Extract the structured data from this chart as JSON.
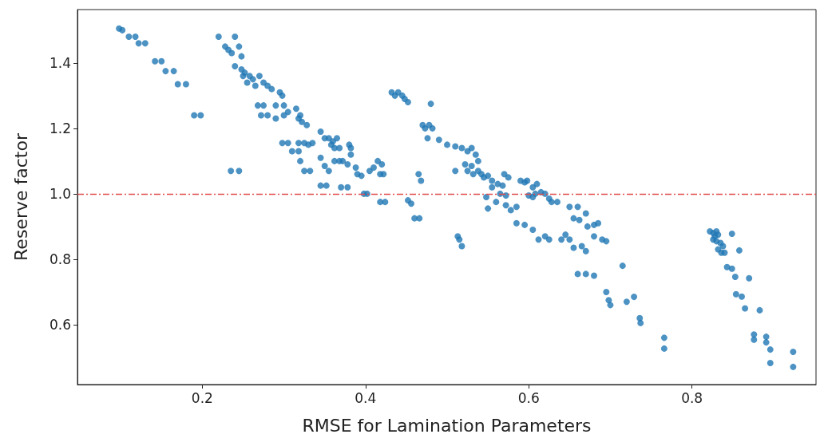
{
  "chart_data": {
    "type": "scatter",
    "xlabel": "RMSE for Lamination Parameters",
    "ylabel": "Reserve factor",
    "xlim": [
      0.047,
      0.952
    ],
    "ylim": [
      0.417,
      1.563
    ],
    "xticks": [
      0.2,
      0.4,
      0.6,
      0.8
    ],
    "yticks": [
      0.6,
      0.8,
      {
        "value": 1,
        "label": "1.0"
      },
      1.2,
      1.4
    ],
    "grid": false,
    "marker": "circle",
    "ref_lines": [
      {
        "axis": "y",
        "value": 1.0,
        "color": "#e04b4b",
        "line_style": "dashed"
      }
    ],
    "series": [
      {
        "color": "#1f77b4",
        "x": [
          0.098,
          0.102,
          0.11,
          0.118,
          0.122,
          0.13,
          0.142,
          0.15,
          0.155,
          0.165,
          0.17,
          0.18,
          0.19,
          0.198,
          0.235,
          0.245,
          0.22,
          0.228,
          0.232,
          0.236,
          0.24,
          0.245,
          0.248,
          0.24,
          0.248,
          0.252,
          0.258,
          0.25,
          0.262,
          0.255,
          0.265,
          0.27,
          0.275,
          0.28,
          0.285,
          0.268,
          0.275,
          0.272,
          0.28,
          0.29,
          0.295,
          0.298,
          0.3,
          0.29,
          0.3,
          0.305,
          0.315,
          0.32,
          0.322,
          0.318,
          0.328,
          0.298,
          0.305,
          0.31,
          0.318,
          0.318,
          0.325,
          0.33,
          0.335,
          0.32,
          0.325,
          0.332,
          0.345,
          0.35,
          0.355,
          0.36,
          0.365,
          0.358,
          0.362,
          0.368,
          0.345,
          0.35,
          0.355,
          0.345,
          0.352,
          0.362,
          0.368,
          0.372,
          0.378,
          0.38,
          0.382,
          0.37,
          0.378,
          0.382,
          0.388,
          0.39,
          0.395,
          0.398,
          0.402,
          0.405,
          0.41,
          0.415,
          0.42,
          0.418,
          0.422,
          0.418,
          0.424,
          0.432,
          0.436,
          0.44,
          0.445,
          0.448,
          0.452,
          0.48,
          0.465,
          0.468,
          0.452,
          0.456,
          0.46,
          0.466,
          0.47,
          0.473,
          0.478,
          0.482,
          0.476,
          0.49,
          0.5,
          0.51,
          0.518,
          0.525,
          0.53,
          0.535,
          0.538,
          0.51,
          0.522,
          0.525,
          0.53,
          0.532,
          0.538,
          0.542,
          0.545,
          0.55,
          0.555,
          0.562,
          0.568,
          0.57,
          0.575,
          0.555,
          0.565,
          0.572,
          0.513,
          0.515,
          0.518,
          0.548,
          0.55,
          0.56,
          0.572,
          0.578,
          0.585,
          0.59,
          0.595,
          0.598,
          0.605,
          0.61,
          0.6,
          0.605,
          0.608,
          0.585,
          0.595,
          0.615,
          0.62,
          0.625,
          0.628,
          0.635,
          0.62,
          0.625,
          0.64,
          0.645,
          0.605,
          0.612,
          0.65,
          0.66,
          0.655,
          0.662,
          0.67,
          0.672,
          0.68,
          0.685,
          0.65,
          0.655,
          0.665,
          0.67,
          0.68,
          0.69,
          0.695,
          0.66,
          0.67,
          0.68,
          0.695,
          0.698,
          0.7,
          0.715,
          0.72,
          0.729,
          0.736,
          0.737,
          0.766,
          0.766,
          0.822,
          0.826,
          0.83,
          0.828,
          0.832,
          0.826,
          0.83,
          0.835,
          0.838,
          0.832,
          0.836,
          0.84,
          0.849,
          0.858,
          0.843,
          0.849,
          0.853,
          0.87,
          0.854,
          0.861,
          0.865,
          0.883,
          0.876,
          0.876,
          0.891,
          0.891,
          0.896,
          0.896,
          0.924,
          0.924
        ],
        "values": [
          1.505,
          1.5,
          1.48,
          1.48,
          1.46,
          1.46,
          1.405,
          1.405,
          1.375,
          1.375,
          1.335,
          1.335,
          1.24,
          1.24,
          1.07,
          1.07,
          1.48,
          1.45,
          1.44,
          1.43,
          1.48,
          1.45,
          1.42,
          1.39,
          1.38,
          1.37,
          1.36,
          1.36,
          1.35,
          1.34,
          1.33,
          1.36,
          1.34,
          1.33,
          1.32,
          1.27,
          1.27,
          1.24,
          1.24,
          1.27,
          1.31,
          1.3,
          1.27,
          1.23,
          1.24,
          1.25,
          1.26,
          1.24,
          1.22,
          1.23,
          1.21,
          1.155,
          1.155,
          1.13,
          1.13,
          1.155,
          1.155,
          1.15,
          1.155,
          1.1,
          1.07,
          1.07,
          1.19,
          1.17,
          1.17,
          1.16,
          1.17,
          1.15,
          1.14,
          1.14,
          1.11,
          1.085,
          1.07,
          1.025,
          1.025,
          1.1,
          1.1,
          1.1,
          1.09,
          1.15,
          1.14,
          1.02,
          1.02,
          1.12,
          1.08,
          1.06,
          1.055,
          1.0,
          1.0,
          1.07,
          1.08,
          1.1,
          1.09,
          1.06,
          1.06,
          0.975,
          0.975,
          1.31,
          1.3,
          1.31,
          1.3,
          1.29,
          1.28,
          1.275,
          1.06,
          1.04,
          0.98,
          0.97,
          0.925,
          0.925,
          1.21,
          1.2,
          1.21,
          1.2,
          1.17,
          1.165,
          1.15,
          1.145,
          1.14,
          1.13,
          1.14,
          1.12,
          1.1,
          1.07,
          1.09,
          1.07,
          1.085,
          1.06,
          1.07,
          1.06,
          1.05,
          1.055,
          1.04,
          1.03,
          1.025,
          1.06,
          1.05,
          1.02,
          1.0,
          0.995,
          0.87,
          0.86,
          0.84,
          0.99,
          0.955,
          0.975,
          0.965,
          0.95,
          0.96,
          1.04,
          1.035,
          1.04,
          1.02,
          1.03,
          0.995,
          0.99,
          1.0,
          0.91,
          0.905,
          1.005,
          1.0,
          0.985,
          0.975,
          0.975,
          0.87,
          0.86,
          0.86,
          0.875,
          0.89,
          0.86,
          0.96,
          0.96,
          0.925,
          0.92,
          0.94,
          0.9,
          0.905,
          0.91,
          0.86,
          0.835,
          0.84,
          0.825,
          0.87,
          0.86,
          0.855,
          0.755,
          0.755,
          0.75,
          0.7,
          0.675,
          0.66,
          0.78,
          0.67,
          0.685,
          0.62,
          0.605,
          0.56,
          0.527,
          0.885,
          0.88,
          0.885,
          0.87,
          0.875,
          0.86,
          0.855,
          0.85,
          0.84,
          0.83,
          0.82,
          0.82,
          0.878,
          0.827,
          0.776,
          0.771,
          0.746,
          0.742,
          0.693,
          0.686,
          0.65,
          0.644,
          0.57,
          0.554,
          0.563,
          0.546,
          0.524,
          0.483,
          0.517,
          0.471
        ]
      }
    ]
  }
}
